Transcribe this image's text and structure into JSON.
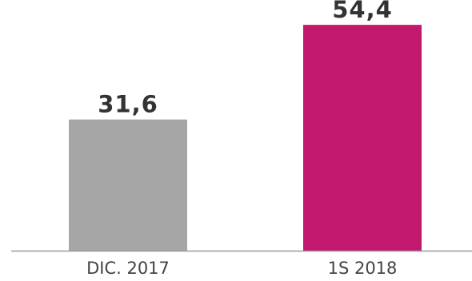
{
  "chart_data": {
    "type": "bar",
    "categories": [
      "DIC. 2017",
      "1S 2018"
    ],
    "values": [
      31.6,
      54.4
    ],
    "value_labels": [
      "31,6",
      "54,4"
    ],
    "colors": [
      "#a6a6a6",
      "#c2186d"
    ],
    "axis_color": "#999999",
    "ylim": [
      0,
      60
    ],
    "grid": false,
    "legend": "none"
  }
}
